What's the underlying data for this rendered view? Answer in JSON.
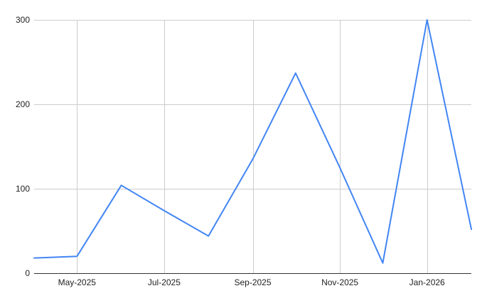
{
  "chart_data": {
    "type": "line",
    "title": "",
    "xlabel": "",
    "ylabel": "",
    "x": [
      "2025-04-01",
      "2025-05-01",
      "2025-06-01",
      "2025-07-01",
      "2025-08-01",
      "2025-09-01",
      "2025-10-01",
      "2025-11-01",
      "2025-12-01",
      "2026-01-01",
      "2026-02-01"
    ],
    "series": [
      {
        "values": [
          18,
          20,
          104,
          74,
          44,
          135,
          237,
          125,
          12,
          300,
          52
        ],
        "color": "#4285f4"
      }
    ],
    "xlim": [
      "2025-04-01",
      "2026-02-01"
    ],
    "ylim": [
      0,
      300
    ],
    "x_ticks": [
      {
        "date": "2025-05-01",
        "label": "May-2025"
      },
      {
        "date": "2025-07-01",
        "label": "Jul-2025"
      },
      {
        "date": "2025-09-01",
        "label": "Sep-2025"
      },
      {
        "date": "2025-11-01",
        "label": "Nov-2025"
      },
      {
        "date": "2026-01-01",
        "label": "Jan-2026"
      }
    ],
    "y_ticks": [
      0,
      100,
      200,
      300
    ],
    "grid": true,
    "legend": "none"
  }
}
